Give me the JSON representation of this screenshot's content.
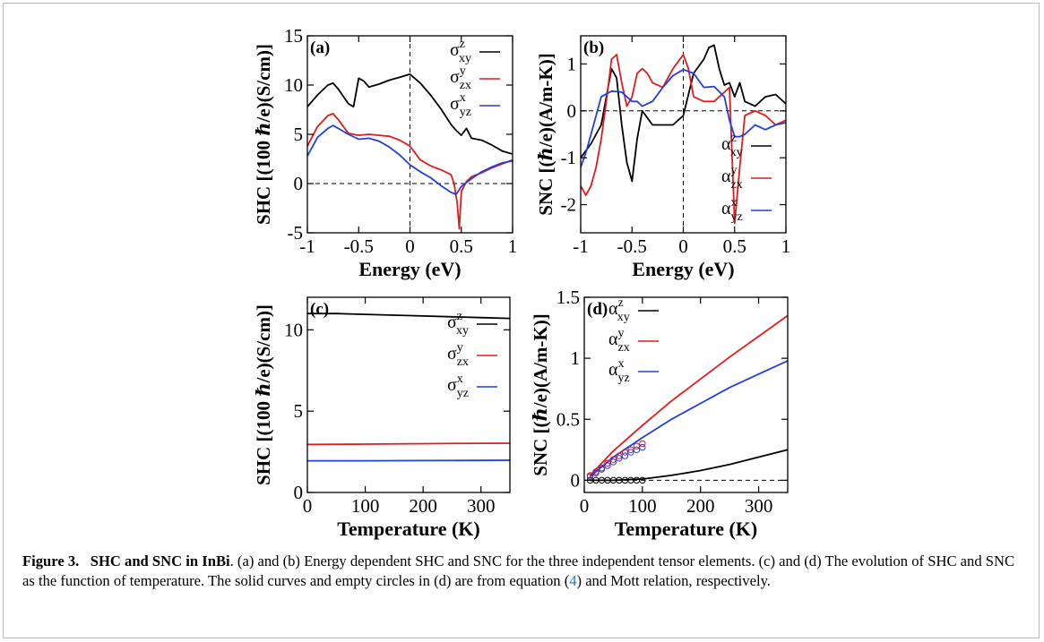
{
  "colors": {
    "xy": "#000000",
    "zx": "#e41a1c",
    "yz": "#1f3fe0",
    "axis": "#000000"
  },
  "caption": {
    "label": "Figure 3.",
    "title": "SHC and SNC in InBi",
    "text_1": ". (a) and (b) Energy dependent SHC and SNC for the three independent tensor elements. (c) and (d) The evolution of SHC and SNC as the function of temperature. The solid curves and empty circles in (d) are from equation (",
    "ref": "4",
    "text_2": ") and Mott relation, respectively."
  },
  "chart_data": [
    {
      "id": "a",
      "type": "line",
      "panel_label": "(a)",
      "xlabel": "Energy (eV)",
      "ylabel": "SHC [(100 ℏ/e)(S/cm)]",
      "xlim": [
        -1,
        1
      ],
      "ylim": [
        -5,
        15
      ],
      "xticks": [
        -1,
        -0.5,
        0,
        0.5,
        1
      ],
      "xtick_labels": [
        "-1",
        "-0.5",
        "0",
        "0.5",
        "1"
      ],
      "yticks": [
        -5,
        0,
        5,
        10,
        15
      ],
      "ytick_labels": [
        "-5",
        "0",
        "5",
        "10",
        "15"
      ],
      "ref_lines": {
        "h": 0,
        "v": 0
      },
      "legend": {
        "position": "top-right"
      },
      "series": [
        {
          "name": "σ",
          "sup": "z",
          "sub": "xy",
          "color_key": "xy",
          "x": [
            -1,
            -0.9,
            -0.8,
            -0.75,
            -0.7,
            -0.6,
            -0.55,
            -0.5,
            -0.45,
            -0.4,
            -0.3,
            -0.2,
            -0.1,
            0,
            0.1,
            0.2,
            0.3,
            0.4,
            0.45,
            0.5,
            0.55,
            0.6,
            0.7,
            0.8,
            0.9,
            1
          ],
          "y": [
            7.8,
            9,
            10,
            10.2,
            9.6,
            8.1,
            7.8,
            10.7,
            10.4,
            9.8,
            10.1,
            10.5,
            10.8,
            11.1,
            10.2,
            9,
            7.6,
            6,
            5.4,
            4.9,
            5.6,
            4.6,
            4.4,
            3.9,
            3.3,
            3
          ]
        },
        {
          "name": "σ",
          "sup": "y",
          "sub": "zx",
          "color_key": "zx",
          "x": [
            -1,
            -0.9,
            -0.8,
            -0.75,
            -0.7,
            -0.6,
            -0.5,
            -0.4,
            -0.3,
            -0.2,
            -0.1,
            0,
            0.1,
            0.2,
            0.3,
            0.4,
            0.43,
            0.46,
            0.48,
            0.5,
            0.55,
            0.6,
            0.7,
            0.8,
            0.9,
            1
          ],
          "y": [
            3.8,
            5.8,
            6.9,
            7.1,
            6.5,
            5.1,
            4.9,
            5,
            4.9,
            4.8,
            4.4,
            3.8,
            2.4,
            1.8,
            1.4,
            0.9,
            0,
            -2,
            -4.6,
            -0.8,
            0.2,
            0.7,
            1.1,
            1.6,
            2,
            2.4
          ]
        },
        {
          "name": "σ",
          "sup": "x",
          "sub": "yz",
          "color_key": "yz",
          "x": [
            -1,
            -0.9,
            -0.8,
            -0.75,
            -0.7,
            -0.6,
            -0.5,
            -0.4,
            -0.3,
            -0.2,
            -0.1,
            0,
            0.1,
            0.2,
            0.3,
            0.4,
            0.45,
            0.5,
            0.6,
            0.7,
            0.8,
            0.9,
            1
          ],
          "y": [
            2.8,
            4.7,
            5.6,
            5.9,
            5.6,
            5,
            4.5,
            4.6,
            4.3,
            3.7,
            2.9,
            1.9,
            1.2,
            0.6,
            -0.2,
            -0.9,
            -1.1,
            -0.3,
            0.5,
            1.2,
            1.7,
            2.1,
            2.3
          ]
        }
      ]
    },
    {
      "id": "b",
      "type": "line",
      "panel_label": "(b)",
      "xlabel": "Energy (eV)",
      "ylabel": "SNC [(ℏ/e)(A/m-K)]",
      "xlim": [
        -1,
        1
      ],
      "ylim": [
        -2.6,
        1.6
      ],
      "xticks": [
        -1,
        -0.5,
        0,
        0.5,
        1
      ],
      "xtick_labels": [
        "-1",
        "-0.5",
        "0",
        "0.5",
        "1"
      ],
      "yticks": [
        -2,
        -1,
        0,
        1
      ],
      "ytick_labels": [
        "-2",
        "-1",
        "0",
        "1"
      ],
      "ref_lines": {
        "h": 0,
        "v": 0
      },
      "legend": {
        "position": "bottom-right"
      },
      "series": [
        {
          "name": "α",
          "sup": "z",
          "sub": "xy",
          "color_key": "xy",
          "x": [
            -1,
            -0.9,
            -0.8,
            -0.7,
            -0.65,
            -0.6,
            -0.55,
            -0.5,
            -0.45,
            -0.4,
            -0.3,
            -0.2,
            -0.1,
            0,
            0.1,
            0.2,
            0.25,
            0.3,
            0.35,
            0.4,
            0.45,
            0.5,
            0.55,
            0.6,
            0.7,
            0.8,
            0.9,
            1
          ],
          "y": [
            -1,
            -0.7,
            -0.3,
            0.9,
            0.7,
            -0.3,
            -1.1,
            -1.5,
            -0.6,
            0,
            -0.3,
            -0.3,
            -0.3,
            -0.1,
            0.8,
            1.1,
            1.35,
            1.4,
            0.9,
            0.55,
            0.6,
            0.3,
            0.6,
            0.2,
            0.1,
            0.3,
            0.35,
            0.15
          ]
        },
        {
          "name": "α",
          "sup": "y",
          "sub": "zx",
          "color_key": "zx",
          "x": [
            -1,
            -0.95,
            -0.9,
            -0.85,
            -0.8,
            -0.75,
            -0.7,
            -0.65,
            -0.6,
            -0.55,
            -0.5,
            -0.45,
            -0.4,
            -0.35,
            -0.3,
            -0.2,
            -0.1,
            0,
            0.05,
            0.1,
            0.2,
            0.3,
            0.4,
            0.45,
            0.5,
            0.55,
            0.6,
            0.7,
            0.8,
            0.9,
            1
          ],
          "y": [
            -1.6,
            -1.8,
            -1.6,
            -1.2,
            -0.6,
            0.2,
            1.1,
            1.2,
            0.6,
            0.1,
            0.3,
            0.8,
            0.9,
            0.8,
            0.6,
            0.5,
            0.9,
            1.2,
            0.9,
            0.3,
            0.2,
            0.2,
            0.4,
            0.5,
            -2.4,
            -1.2,
            -0.1,
            0,
            -0.1,
            -0.3,
            -0.2
          ]
        },
        {
          "name": "α",
          "sup": "x",
          "sub": "yz",
          "color_key": "yz",
          "x": [
            -1,
            -0.95,
            -0.9,
            -0.8,
            -0.7,
            -0.6,
            -0.5,
            -0.45,
            -0.4,
            -0.3,
            -0.2,
            -0.1,
            0,
            0.1,
            0.2,
            0.3,
            0.4,
            0.45,
            0.5,
            0.55,
            0.6,
            0.7,
            0.8,
            0.9,
            1
          ],
          "y": [
            -1.2,
            -0.9,
            -0.5,
            0.3,
            0.42,
            0.4,
            0.2,
            0.2,
            0.1,
            0.2,
            0.5,
            0.75,
            0.88,
            0.8,
            0.5,
            0.52,
            0.3,
            -0.2,
            -0.55,
            -0.55,
            -0.5,
            -0.3,
            -0.4,
            -0.3,
            -0.25
          ]
        }
      ]
    },
    {
      "id": "c",
      "type": "line",
      "panel_label": "(c)",
      "xlabel": "Temperature (K)",
      "ylabel": "SHC [(100 ℏ/e)(S/cm)]",
      "xlim": [
        0,
        350
      ],
      "ylim": [
        0,
        12
      ],
      "xticks": [
        0,
        100,
        200,
        300
      ],
      "xtick_labels": [
        "0",
        "100",
        "200",
        "300"
      ],
      "yticks": [
        0,
        5,
        10
      ],
      "ytick_labels": [
        "0",
        "5",
        "10"
      ],
      "legend": {
        "position": "right"
      },
      "series": [
        {
          "name": "σ",
          "sup": "z",
          "sub": "xy",
          "color_key": "xy",
          "x": [
            0,
            50,
            100,
            150,
            200,
            250,
            300,
            350
          ],
          "y": [
            11.0,
            11.0,
            10.95,
            10.9,
            10.85,
            10.8,
            10.75,
            10.7
          ]
        },
        {
          "name": "σ",
          "sup": "y",
          "sub": "zx",
          "color_key": "zx",
          "x": [
            0,
            100,
            200,
            300,
            350
          ],
          "y": [
            2.95,
            2.97,
            3.0,
            3.02,
            3.03
          ]
        },
        {
          "name": "σ",
          "sup": "x",
          "sub": "yz",
          "color_key": "yz",
          "x": [
            0,
            100,
            200,
            300,
            350
          ],
          "y": [
            1.95,
            1.95,
            1.96,
            1.97,
            1.98
          ]
        }
      ]
    },
    {
      "id": "d",
      "type": "line",
      "panel_label": "(d)",
      "xlabel": "Temperature (K)",
      "ylabel": "SNC [(ℏ/e)(A/m-K)]",
      "xlim": [
        0,
        350
      ],
      "ylim": [
        -0.1,
        1.5
      ],
      "xticks": [
        0,
        100,
        200,
        300
      ],
      "xtick_labels": [
        "0",
        "100",
        "200",
        "300"
      ],
      "yticks": [
        0,
        0.5,
        1,
        1.5
      ],
      "ytick_labels": [
        "0",
        "0.5",
        "1",
        "1.5"
      ],
      "ref_lines": {
        "h": 0
      },
      "legend": {
        "position": "top-left"
      },
      "series": [
        {
          "name": "α",
          "sup": "z",
          "sub": "xy",
          "color_key": "xy",
          "x": [
            10,
            50,
            100,
            150,
            200,
            250,
            300,
            350
          ],
          "y": [
            0,
            0,
            0.01,
            0.04,
            0.08,
            0.13,
            0.19,
            0.25
          ]
        },
        {
          "name": "α",
          "sup": "y",
          "sub": "zx",
          "color_key": "zx",
          "x": [
            10,
            50,
            100,
            150,
            200,
            250,
            300,
            350
          ],
          "y": [
            0.04,
            0.24,
            0.45,
            0.65,
            0.83,
            1.01,
            1.18,
            1.35
          ]
        },
        {
          "name": "α",
          "sup": "x",
          "sub": "yz",
          "color_key": "yz",
          "x": [
            10,
            50,
            100,
            150,
            200,
            250,
            300,
            350
          ],
          "y": [
            0.03,
            0.19,
            0.35,
            0.5,
            0.63,
            0.76,
            0.87,
            0.98
          ]
        }
      ],
      "markers": [
        {
          "color_key": "xy",
          "x": [
            10,
            20,
            30,
            40,
            50,
            60,
            70,
            80,
            90,
            100
          ],
          "y": [
            0,
            0,
            0,
            0,
            0,
            0,
            0,
            0,
            0,
            0
          ]
        },
        {
          "color_key": "zx",
          "x": [
            10,
            20,
            30,
            40,
            50,
            60,
            70,
            80,
            90,
            100
          ],
          "y": [
            0.04,
            0.07,
            0.1,
            0.14,
            0.17,
            0.2,
            0.23,
            0.25,
            0.28,
            0.3
          ]
        },
        {
          "color_key": "yz",
          "x": [
            10,
            20,
            30,
            40,
            50,
            60,
            70,
            80,
            90,
            100
          ],
          "y": [
            0.03,
            0.06,
            0.09,
            0.12,
            0.15,
            0.18,
            0.2,
            0.23,
            0.25,
            0.27
          ]
        }
      ]
    }
  ]
}
